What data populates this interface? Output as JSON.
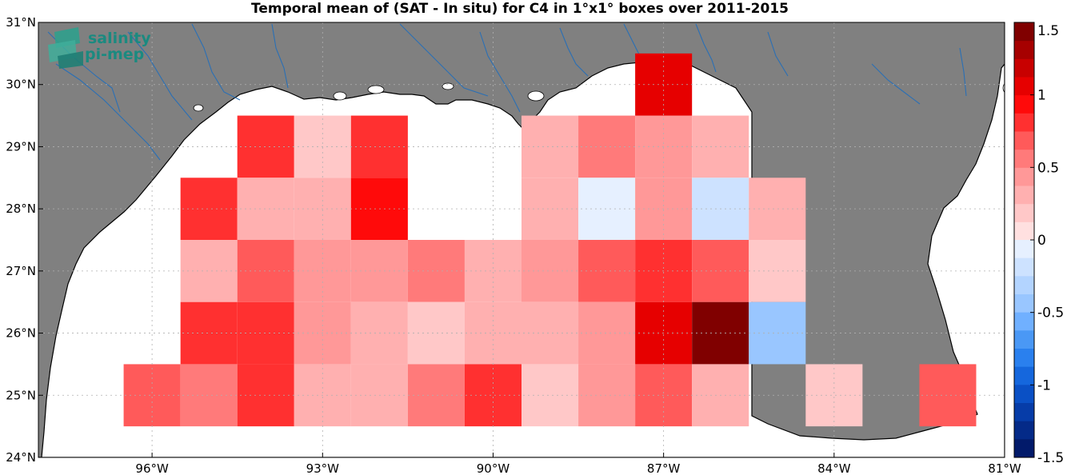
{
  "title": "Temporal mean of (SAT - In situ) for C4 in 1°x1° boxes over 2011-2015",
  "logo": {
    "line1": "salinity",
    "line2": "pi-mep"
  },
  "map": {
    "lon_range": [
      -98,
      -81
    ],
    "lat_range": [
      24,
      31
    ],
    "x_ticks": [
      {
        "lon": -96,
        "label": "96°W"
      },
      {
        "lon": -93,
        "label": "93°W"
      },
      {
        "lon": -90,
        "label": "90°W"
      },
      {
        "lon": -87,
        "label": "87°W"
      },
      {
        "lon": -84,
        "label": "84°W"
      },
      {
        "lon": -81,
        "label": "81°W"
      }
    ],
    "y_ticks": [
      {
        "lat": 24,
        "label": "24°N"
      },
      {
        "lat": 25,
        "label": "25°N"
      },
      {
        "lat": 26,
        "label": "26°N"
      },
      {
        "lat": 27,
        "label": "27°N"
      },
      {
        "lat": 28,
        "label": "28°N"
      },
      {
        "lat": 29,
        "label": "29°N"
      },
      {
        "lat": 30,
        "label": "30°N"
      },
      {
        "lat": 31,
        "label": "31°N"
      }
    ],
    "grid": true,
    "colors": {
      "land": "#808080",
      "ocean": "#ffffff",
      "rivers": "#2a6fb5",
      "coast": "#000000"
    },
    "cells": [
      {
        "lon": -94,
        "lat": 29,
        "value": 0.85
      },
      {
        "lon": -93,
        "lat": 29,
        "value": 0.15
      },
      {
        "lon": -92,
        "lat": 29,
        "value": 0.85
      },
      {
        "lon": -89,
        "lat": 29,
        "value": 0.3
      },
      {
        "lon": -88,
        "lat": 29,
        "value": 0.55
      },
      {
        "lon": -87,
        "lat": 29,
        "value": 0.45
      },
      {
        "lon": -86,
        "lat": 29,
        "value": 0.35
      },
      {
        "lon": -87,
        "lat": 30,
        "value": 1.05
      },
      {
        "lon": -95,
        "lat": 28,
        "value": 0.75
      },
      {
        "lon": -94,
        "lat": 28,
        "value": 0.35
      },
      {
        "lon": -93,
        "lat": 28,
        "value": 0.35
      },
      {
        "lon": -92,
        "lat": 28,
        "value": 0.95
      },
      {
        "lon": -89,
        "lat": 28,
        "value": 0.3
      },
      {
        "lon": -88,
        "lat": 28,
        "value": -0.1
      },
      {
        "lon": -87,
        "lat": 28,
        "value": 0.45
      },
      {
        "lon": -86,
        "lat": 28,
        "value": -0.2
      },
      {
        "lon": -85,
        "lat": 28,
        "value": 0.35
      },
      {
        "lon": -95,
        "lat": 27,
        "value": 0.3
      },
      {
        "lon": -94,
        "lat": 27,
        "value": 0.65
      },
      {
        "lon": -93,
        "lat": 27,
        "value": 0.45
      },
      {
        "lon": -92,
        "lat": 27,
        "value": 0.45
      },
      {
        "lon": -91,
        "lat": 27,
        "value": 0.55
      },
      {
        "lon": -90,
        "lat": 27,
        "value": 0.35
      },
      {
        "lon": -89,
        "lat": 27,
        "value": 0.45
      },
      {
        "lon": -88,
        "lat": 27,
        "value": 0.65
      },
      {
        "lon": -87,
        "lat": 27,
        "value": 0.85
      },
      {
        "lon": -86,
        "lat": 27,
        "value": 0.65
      },
      {
        "lon": -85,
        "lat": 27,
        "value": 0.15
      },
      {
        "lon": -95,
        "lat": 26,
        "value": 0.75
      },
      {
        "lon": -94,
        "lat": 26,
        "value": 0.85
      },
      {
        "lon": -93,
        "lat": 26,
        "value": 0.45
      },
      {
        "lon": -92,
        "lat": 26,
        "value": 0.3
      },
      {
        "lon": -91,
        "lat": 26,
        "value": 0.15
      },
      {
        "lon": -90,
        "lat": 26,
        "value": 0.3
      },
      {
        "lon": -89,
        "lat": 26,
        "value": 0.3
      },
      {
        "lon": -88,
        "lat": 26,
        "value": 0.45
      },
      {
        "lon": -87,
        "lat": 26,
        "value": 1.05
      },
      {
        "lon": -86,
        "lat": 26,
        "value": 1.45
      },
      {
        "lon": -85,
        "lat": 26,
        "value": -0.45
      },
      {
        "lon": -96,
        "lat": 25,
        "value": 0.65
      },
      {
        "lon": -95,
        "lat": 25,
        "value": 0.55
      },
      {
        "lon": -94,
        "lat": 25,
        "value": 0.75
      },
      {
        "lon": -93,
        "lat": 25,
        "value": 0.3
      },
      {
        "lon": -92,
        "lat": 25,
        "value": 0.3
      },
      {
        "lon": -91,
        "lat": 25,
        "value": 0.55
      },
      {
        "lon": -90,
        "lat": 25,
        "value": 0.75
      },
      {
        "lon": -89,
        "lat": 25,
        "value": 0.15
      },
      {
        "lon": -88,
        "lat": 25,
        "value": 0.45
      },
      {
        "lon": -87,
        "lat": 25,
        "value": 0.65
      },
      {
        "lon": -86,
        "lat": 25,
        "value": 0.35
      },
      {
        "lon": -84,
        "lat": 25,
        "value": 0.15
      },
      {
        "lon": -82,
        "lat": 25,
        "value": 0.65
      }
    ]
  },
  "colorbar": {
    "range": [
      -1.5,
      1.5
    ],
    "ticks": [
      {
        "value": 1.5,
        "label": "1.5"
      },
      {
        "value": 1,
        "label": "1"
      },
      {
        "value": 0.5,
        "label": "0.5"
      },
      {
        "value": 0,
        "label": "0"
      },
      {
        "value": -0.5,
        "label": "-0.5"
      },
      {
        "value": -1,
        "label": "-1"
      },
      {
        "value": -1.5,
        "label": "-1.5"
      }
    ],
    "neg_colors": [
      "#e6f0ff",
      "#cde2ff",
      "#b3d4ff",
      "#99c6ff",
      "#70b0ff",
      "#4a98f5",
      "#2a80ee",
      "#1567dd",
      "#0a50c5",
      "#063ca8",
      "#042a88",
      "#021a6a"
    ],
    "pos_colors": [
      "#ffe0e0",
      "#ffc8c8",
      "#ffb0b0",
      "#ff9898",
      "#ff7a7a",
      "#ff5a5a",
      "#ff3030",
      "#ff0a0a",
      "#e60000",
      "#c80000",
      "#a60000",
      "#800000"
    ]
  }
}
